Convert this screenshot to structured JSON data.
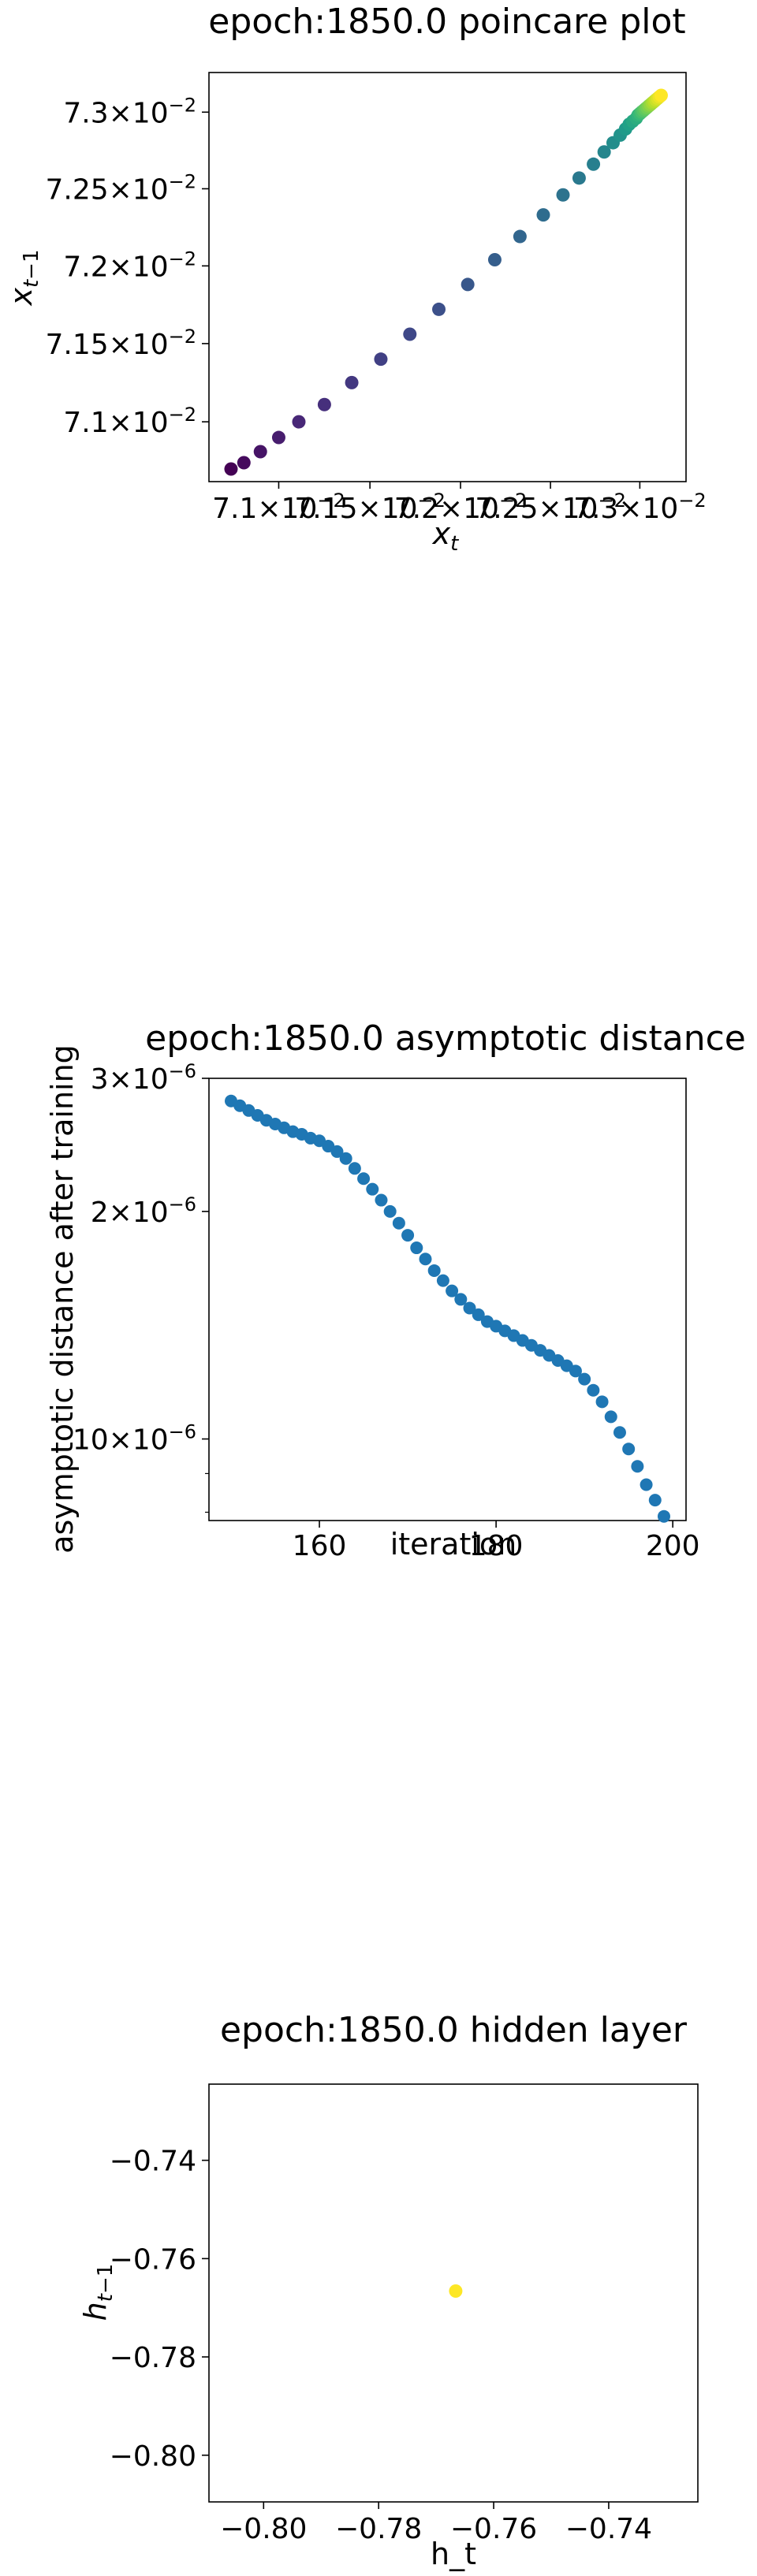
{
  "chart_data": [
    {
      "type": "scatter",
      "title": "epoch:1850.0 poincare plot",
      "xlabel": "x_t",
      "ylabel": "x_{t-1}",
      "xscale": "log",
      "yscale": "log",
      "xlim": [
        0.07062,
        0.07326
      ],
      "ylim": [
        0.07062,
        0.07326
      ],
      "colormap": "viridis",
      "xticks": [
        {
          "value": 0.071,
          "mant": "7.1",
          "exp": "−2"
        },
        {
          "value": 0.0715,
          "mant": "7.15",
          "exp": "−2"
        },
        {
          "value": 0.072,
          "mant": "7.2",
          "exp": "−2"
        },
        {
          "value": 0.0725,
          "mant": "7.25",
          "exp": "−2"
        },
        {
          "value": 0.073,
          "mant": "7.3",
          "exp": "−2"
        }
      ],
      "yticks": [
        {
          "value": 0.071,
          "mant": "7.1",
          "exp": "−2"
        },
        {
          "value": 0.0715,
          "mant": "7.15",
          "exp": "−2"
        },
        {
          "value": 0.072,
          "mant": "7.2",
          "exp": "−2"
        },
        {
          "value": 0.0725,
          "mant": "7.25",
          "exp": "−2"
        },
        {
          "value": 0.073,
          "mant": "7.3",
          "exp": "−2"
        }
      ],
      "x": [
        0.07074,
        0.07081,
        0.0709,
        0.071,
        0.07111,
        0.07125,
        0.0714,
        0.07156,
        0.07172,
        0.07188,
        0.07204,
        0.07219,
        0.07233,
        0.07246,
        0.07257,
        0.07266,
        0.07274,
        0.0728,
        0.07285,
        0.07289,
        0.07292,
        0.07294,
        0.07296,
        0.07298,
        0.07299,
        0.073,
        0.07301,
        0.07302,
        0.07303,
        0.07304,
        0.07305,
        0.07306,
        0.07307,
        0.07308,
        0.07309,
        0.0731,
        0.07311,
        0.07312
      ],
      "y": [
        0.0707,
        0.07074,
        0.07081,
        0.0709,
        0.071,
        0.07111,
        0.07125,
        0.0714,
        0.07156,
        0.07172,
        0.07188,
        0.07204,
        0.07219,
        0.07233,
        0.07246,
        0.07257,
        0.07266,
        0.07274,
        0.0728,
        0.07285,
        0.07289,
        0.07292,
        0.07294,
        0.07296,
        0.07298,
        0.07299,
        0.073,
        0.07301,
        0.07302,
        0.07303,
        0.07304,
        0.07305,
        0.07306,
        0.07307,
        0.07308,
        0.07309,
        0.0731,
        0.07311
      ]
    },
    {
      "type": "scatter",
      "title": "epoch:1850.0 asymptotic distance",
      "xlabel": "iteration",
      "ylabel": "asymptotic distance after training",
      "yscale": "log",
      "xlim": [
        147.5,
        201.5
      ],
      "ylim": [
        7.8e-07,
        3e-06
      ],
      "color": "#1f77b4",
      "xticks": [
        160,
        180,
        200
      ],
      "yticks": [
        {
          "value": 3e-06,
          "mant": "3",
          "exp": "−6"
        },
        {
          "value": 2e-06,
          "mant": "2",
          "exp": "−6"
        },
        {
          "value": 1e-06,
          "mant": "10",
          "exp": "−6"
        }
      ],
      "x": [
        150,
        151,
        152,
        153,
        154,
        155,
        156,
        157,
        158,
        159,
        160,
        161,
        162,
        163,
        164,
        165,
        166,
        167,
        168,
        169,
        170,
        171,
        172,
        173,
        174,
        175,
        176,
        177,
        178,
        179,
        180,
        181,
        182,
        183,
        184,
        185,
        186,
        187,
        188,
        189,
        190,
        191,
        192,
        193,
        194,
        195,
        196,
        197,
        198,
        199
      ],
      "y": [
        2.8e-06,
        2.76e-06,
        2.72e-06,
        2.68e-06,
        2.64e-06,
        2.61e-06,
        2.58e-06,
        2.55e-06,
        2.53e-06,
        2.5e-06,
        2.48e-06,
        2.44e-06,
        2.4e-06,
        2.35e-06,
        2.28e-06,
        2.21e-06,
        2.14e-06,
        2.07e-06,
        2e-06,
        1.93e-06,
        1.86e-06,
        1.79e-06,
        1.73e-06,
        1.67e-06,
        1.62e-06,
        1.57e-06,
        1.53e-06,
        1.49e-06,
        1.46e-06,
        1.43e-06,
        1.41e-06,
        1.39e-06,
        1.37e-06,
        1.35e-06,
        1.33e-06,
        1.31e-06,
        1.29e-06,
        1.27e-06,
        1.25e-06,
        1.23e-06,
        1.2e-06,
        1.16e-06,
        1.12e-06,
        1.07e-06,
        1.02e-06,
        9.7e-07,
        9.2e-07,
        8.7e-07,
        8.3e-07,
        7.9e-07
      ]
    },
    {
      "type": "scatter",
      "title": "epoch:1850.0 hidden layer",
      "xlabel": "h_t",
      "ylabel": "h_{t-1}",
      "xlim": [
        -0.8095,
        -0.7245
      ],
      "ylim": [
        -0.8095,
        -0.7245
      ],
      "xticks": [
        -0.8,
        -0.78,
        -0.76,
        -0.74
      ],
      "yticks": [
        -0.8,
        -0.78,
        -0.76,
        -0.74
      ],
      "tick_labels": [
        "−0.80",
        "−0.78",
        "−0.76",
        "−0.74"
      ],
      "color": "#fde725",
      "x": [
        -0.7666
      ],
      "y": [
        -0.7666
      ]
    }
  ]
}
